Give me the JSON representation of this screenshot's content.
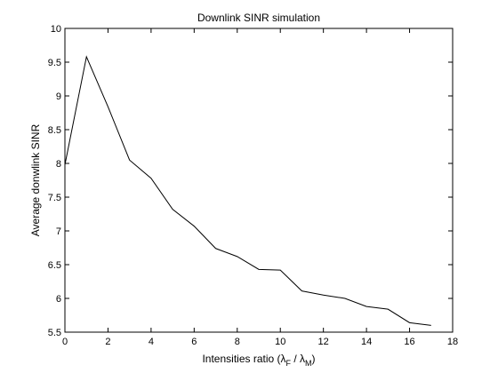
{
  "chart_data": {
    "type": "line",
    "title": "Downlink SINR simulation",
    "xlabel": {
      "prefix": "Intensities ratio (",
      "lambda": "λ",
      "sub_numerator": "F",
      "separator": " / ",
      "sub_denominator": "M",
      "suffix": ")"
    },
    "ylabel": "Average donwlink SINR",
    "xlim": [
      0,
      18
    ],
    "ylim": [
      5.5,
      10
    ],
    "xticks": [
      0,
      2,
      4,
      6,
      8,
      10,
      12,
      14,
      16,
      18
    ],
    "yticks": [
      5.5,
      6,
      6.5,
      7,
      7.5,
      8,
      8.5,
      9,
      9.5,
      10
    ],
    "ytick_labels": [
      "5.5",
      "6",
      "6.5",
      "7",
      "7.5",
      "8",
      "8.5",
      "9",
      "9.5",
      "10"
    ],
    "grid": false,
    "series": [
      {
        "x": [
          0,
          1,
          2,
          3,
          4,
          5,
          6,
          7,
          8,
          9,
          10,
          11,
          12,
          13,
          14,
          15,
          16,
          17
        ],
        "y": [
          7.98,
          9.58,
          8.84,
          8.05,
          7.78,
          7.32,
          7.07,
          6.74,
          6.62,
          6.43,
          6.42,
          6.11,
          6.05,
          6.0,
          5.88,
          5.84,
          5.64,
          5.6
        ],
        "color": "#000000"
      }
    ]
  }
}
